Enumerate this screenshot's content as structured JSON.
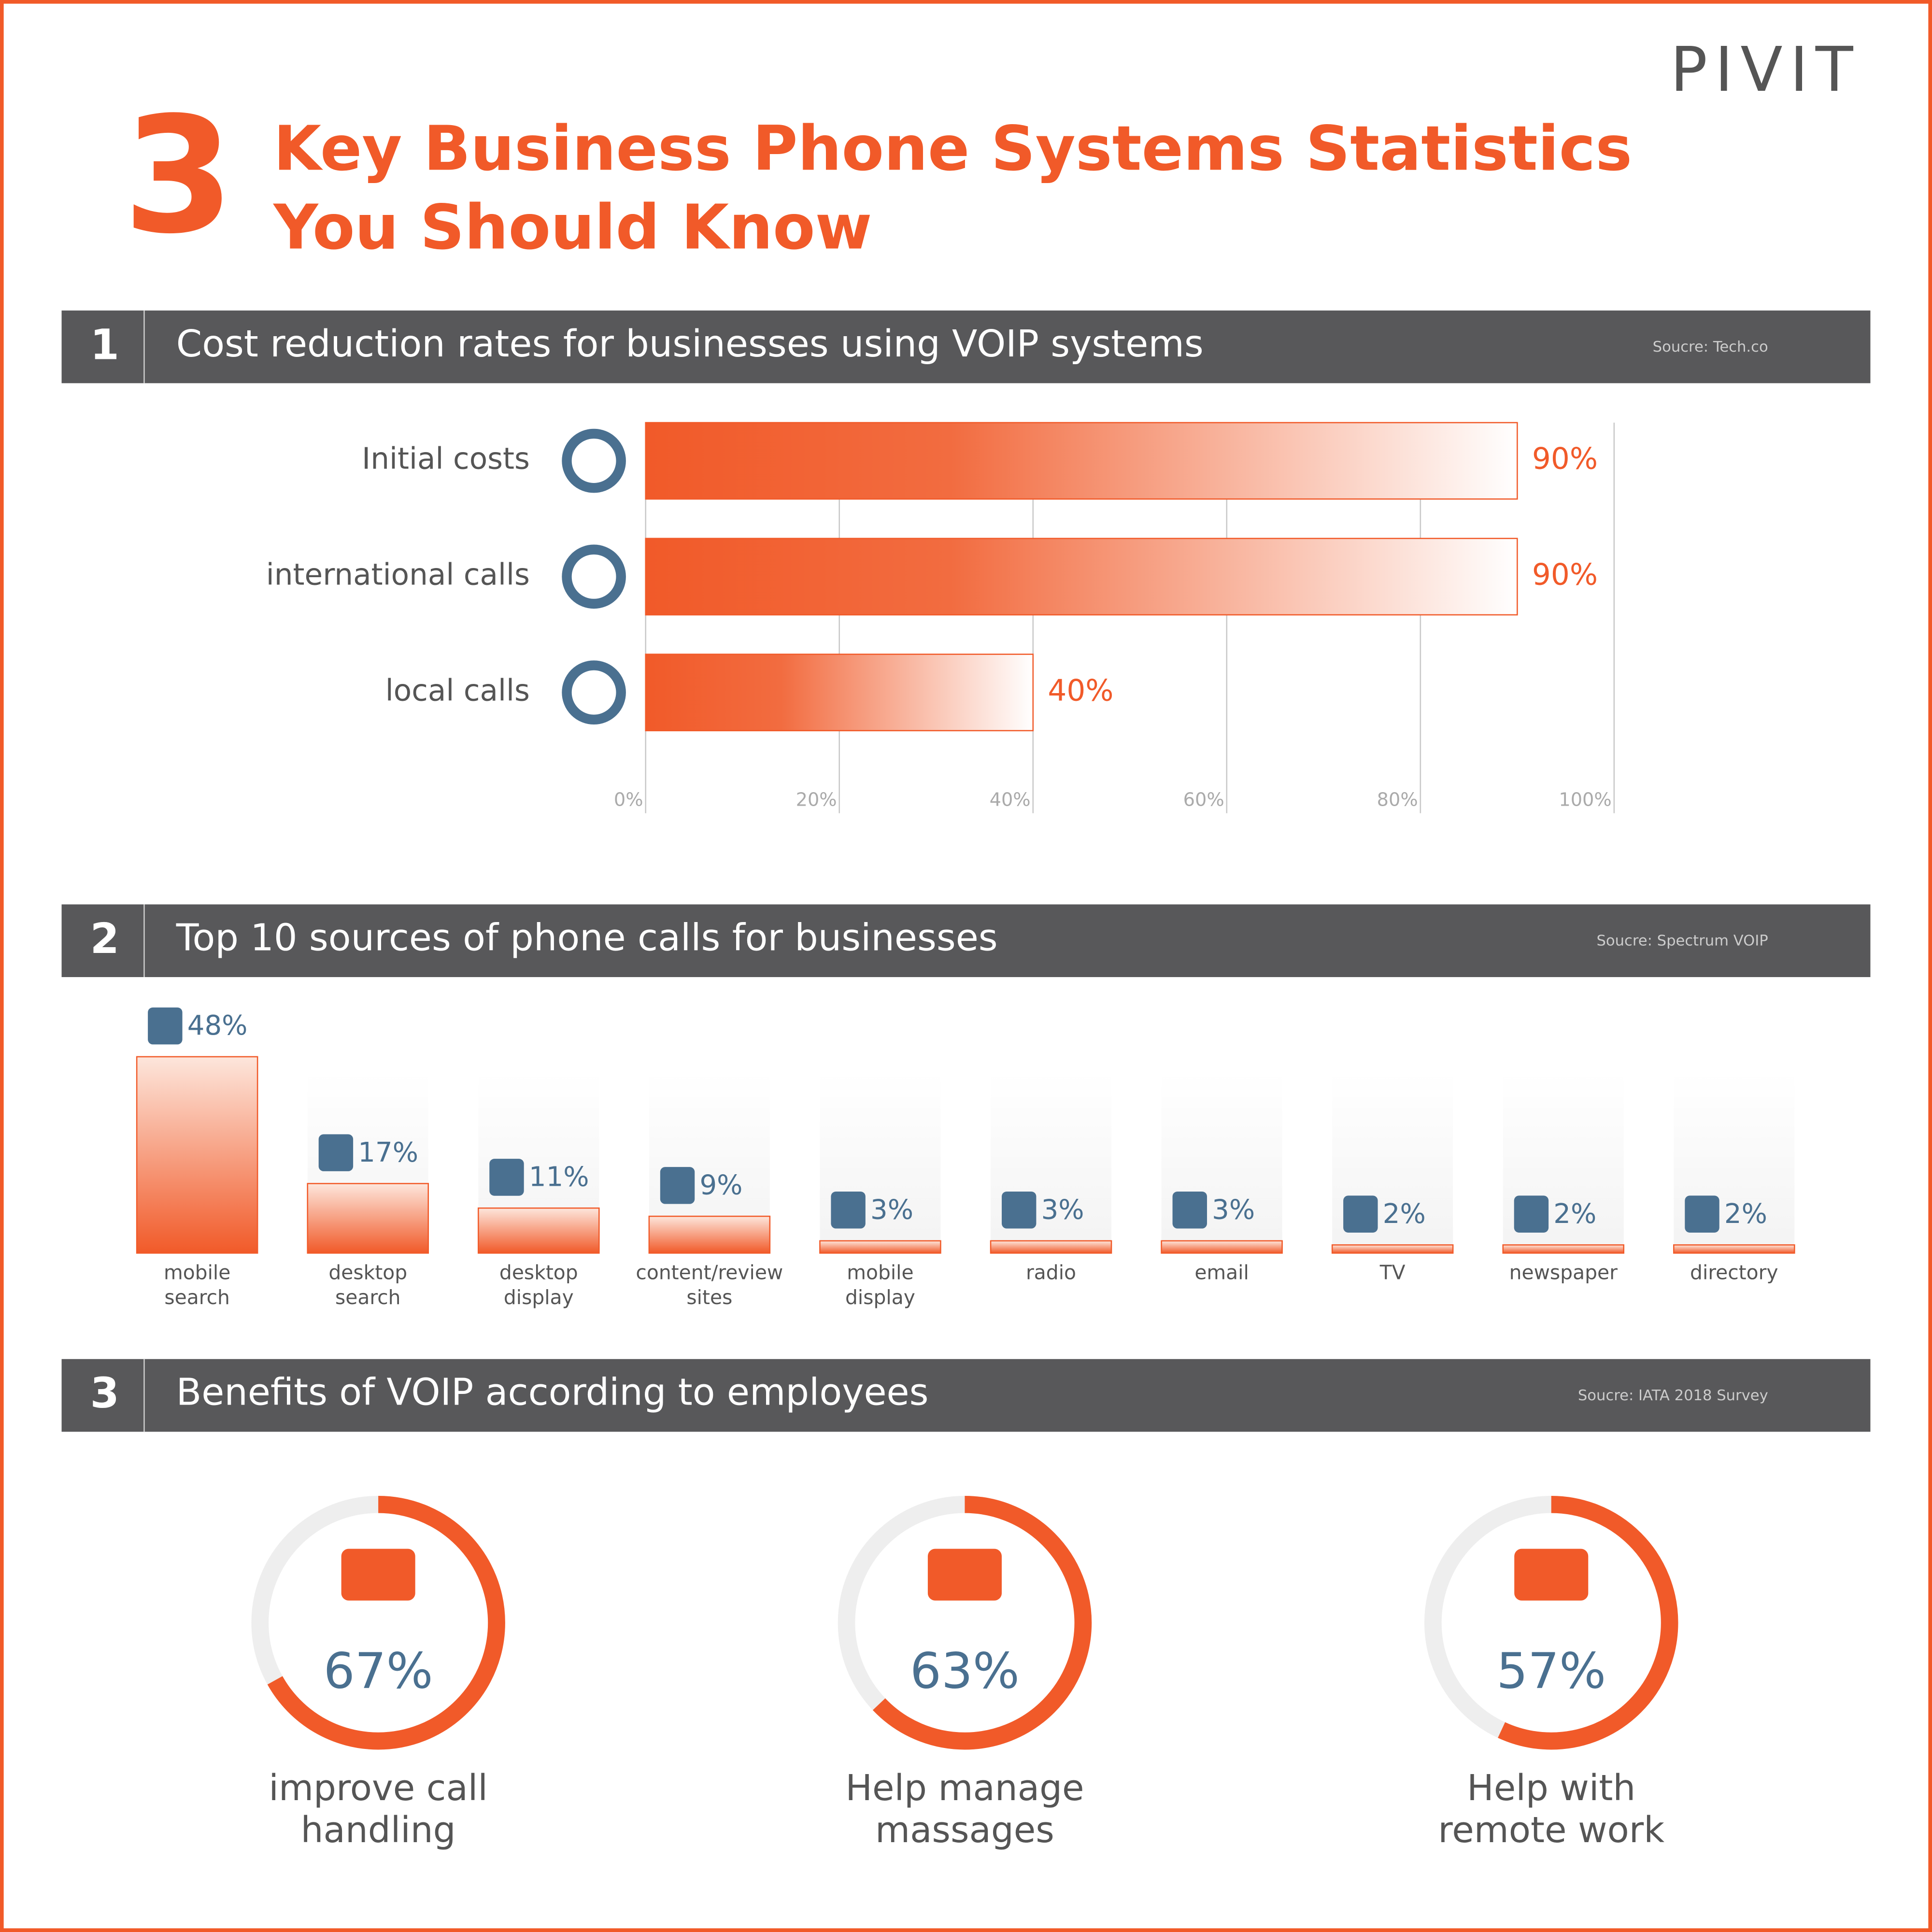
{
  "header": {
    "logo": "PIVIT",
    "number": "3",
    "title": [
      "Key Business Phone Systems Statistics",
      "You Should Know"
    ]
  },
  "chart_data": [
    {
      "type": "hbar",
      "number": "1",
      "title": "Cost reduction rates for businesses using VOIP systems",
      "source": "Soucre: Tech.co",
      "categories": [
        "Initial costs",
        "international calls",
        "local calls"
      ],
      "values": [
        90,
        90,
        40
      ],
      "value_labels": [
        "90%",
        "90%",
        "40%"
      ],
      "xlim": [
        0,
        100
      ],
      "xticks": [
        {
          "value": 0,
          "label": "0%"
        },
        {
          "value": 20,
          "label": "20%"
        },
        {
          "value": 40,
          "label": "40%"
        },
        {
          "value": 60,
          "label": "60%"
        },
        {
          "value": 80,
          "label": "80%"
        },
        {
          "value": 100,
          "label": "100%"
        }
      ],
      "color": "#f15a29",
      "grid": true
    },
    {
      "type": "column",
      "number": "2",
      "title": "Top 10 sources of phone calls for businesses",
      "source": "Soucre: Spectrum VOIP",
      "categories": [
        "mobile search",
        "desktop search",
        "desktop display",
        "content/review sites",
        "mobile display",
        "radio",
        "email",
        "TV",
        "newspaper",
        "directory"
      ],
      "values": [
        48,
        17,
        11,
        9,
        3,
        3,
        3,
        2,
        2,
        2
      ],
      "value_labels": [
        "48%",
        "17%",
        "11%",
        "9%",
        "3%",
        "3%",
        "3%",
        "2%",
        "2%",
        "2%"
      ],
      "ylim": [
        0,
        50
      ],
      "color": "#f15a29"
    },
    {
      "type": "donut",
      "number": "3",
      "title": "Benefits of VOIP according to employees",
      "source": "Soucre: IATA 2018 Survey",
      "categories": [
        [
          "improve call",
          "handling"
        ],
        [
          "Help manage",
          "massages"
        ],
        [
          "Help with",
          "remote work"
        ]
      ],
      "values": [
        67,
        63,
        57
      ],
      "value_labels": [
        "67%",
        "63%",
        "57%"
      ],
      "ylim": [
        0,
        100
      ],
      "color": "#f15a29"
    }
  ]
}
